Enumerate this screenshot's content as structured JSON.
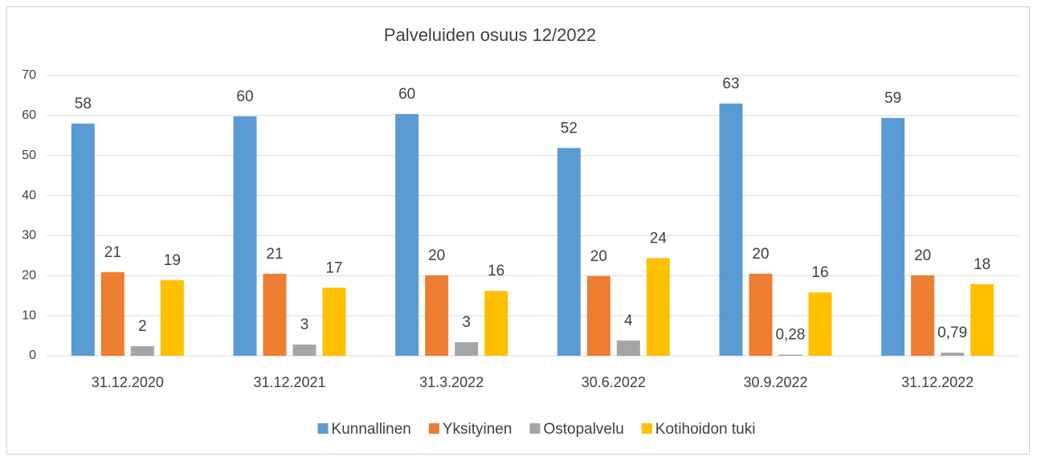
{
  "chart_data": {
    "type": "bar",
    "title": "Palveluiden osuus 12/2022",
    "categories": [
      "31.12.2020",
      "31.12.2021",
      "31.3.2022",
      "30.6.2022",
      "30.9.2022",
      "31.12.2022"
    ],
    "series": [
      {
        "name": "Kunnallinen",
        "color": "#5b9bd5",
        "values": [
          58,
          59.8,
          60.4,
          51.9,
          63,
          59.4
        ],
        "value_labels": [
          "58",
          "60",
          "60",
          "52",
          "63",
          "59"
        ]
      },
      {
        "name": "Yksityinen",
        "color": "#ed7d31",
        "values": [
          20.9,
          20.5,
          20.1,
          19.9,
          20.5,
          20.1
        ],
        "value_labels": [
          "21",
          "21",
          "20",
          "20",
          "20",
          "20"
        ]
      },
      {
        "name": "Ostopalvelu",
        "color": "#a5a5a5",
        "values": [
          2.4,
          2.8,
          3.4,
          3.8,
          0.28,
          0.79
        ],
        "value_labels": [
          "2",
          "3",
          "3",
          "4",
          "0,28",
          "0,79"
        ]
      },
      {
        "name": "Kotihoidon tuki",
        "color": "#ffc000",
        "values": [
          18.9,
          17,
          16.2,
          24.4,
          15.8,
          17.9
        ],
        "value_labels": [
          "19",
          "17",
          "16",
          "24",
          "16",
          "18"
        ]
      }
    ],
    "ylim": [
      0,
      70
    ],
    "yticks": [
      0,
      10,
      20,
      30,
      40,
      50,
      60,
      70
    ],
    "grid": true,
    "legend": "bottom"
  }
}
